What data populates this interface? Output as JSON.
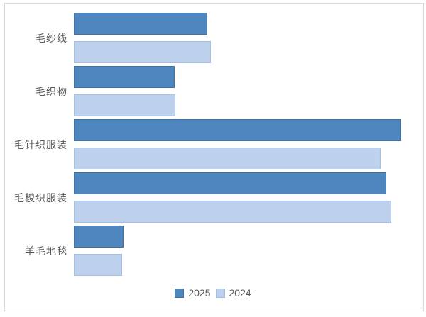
{
  "chart_data": {
    "type": "bar",
    "orientation": "horizontal",
    "title": "",
    "xlabel": "",
    "ylabel": "",
    "grid": false,
    "legend_position": "bottom-center",
    "categories": [
      "毛纱线",
      "毛织物",
      "毛针织服装",
      "毛梭织服装",
      "羊毛地毯"
    ],
    "series": [
      {
        "name": "2025",
        "color": "#4E86C0",
        "border_color": "#41719C",
        "values": [
          40.8,
          30.8,
          100.0,
          95.4,
          15.2
        ]
      },
      {
        "name": "2024",
        "color": "#BDD1EC",
        "border_color": "#A5BFE2",
        "values": [
          41.9,
          31.0,
          93.7,
          97.0,
          14.8
        ]
      }
    ],
    "xlim": [
      0,
      105
    ],
    "value_axis_visible": false
  },
  "legend": {
    "items": [
      {
        "label": "2025",
        "color": "#4E86C0"
      },
      {
        "label": "2024",
        "color": "#BDD1EC"
      }
    ]
  },
  "colors": {
    "background": "#FFFFFF",
    "frame_border": "#D3D9E0",
    "label_text": "#595959"
  }
}
